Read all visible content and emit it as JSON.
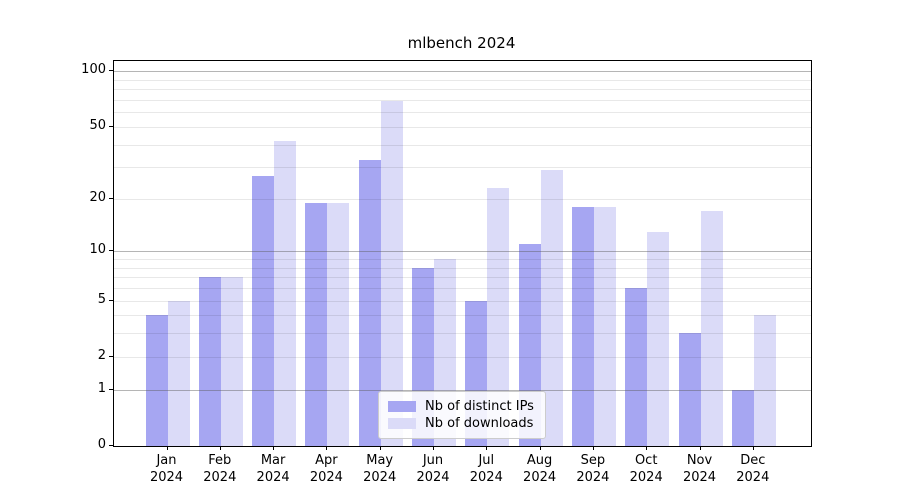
{
  "chart_data": {
    "type": "bar",
    "title": "mlbench 2024",
    "categories": [
      "Jan 2024",
      "Feb 2024",
      "Mar 2024",
      "Apr 2024",
      "May 2024",
      "Jun 2024",
      "Jul 2024",
      "Aug 2024",
      "Sep 2024",
      "Oct 2024",
      "Nov 2024",
      "Dec 2024"
    ],
    "series": [
      {
        "name": "Nb of distinct IPs",
        "color": "#a6a6f2",
        "values": [
          4,
          7,
          27,
          19,
          33,
          8,
          5,
          11,
          18,
          6,
          3,
          1
        ]
      },
      {
        "name": "Nb of downloads",
        "color": "#dbdbf8",
        "values": [
          5,
          7,
          42,
          19,
          69,
          9,
          23,
          29,
          18,
          13,
          17,
          4
        ]
      }
    ],
    "y_axis": {
      "scale": "log1p",
      "tick_labels": [
        0,
        1,
        2,
        5,
        10,
        20,
        50,
        100
      ],
      "major_gridlines": [
        1,
        10,
        100
      ],
      "minor_gridlines": [
        2,
        3,
        4,
        5,
        6,
        7,
        8,
        9,
        20,
        30,
        40,
        50,
        60,
        70,
        80,
        90
      ],
      "ylim": [
        0,
        114
      ],
      "grid": true
    },
    "legend": {
      "position": "inside-bottom-center"
    }
  }
}
